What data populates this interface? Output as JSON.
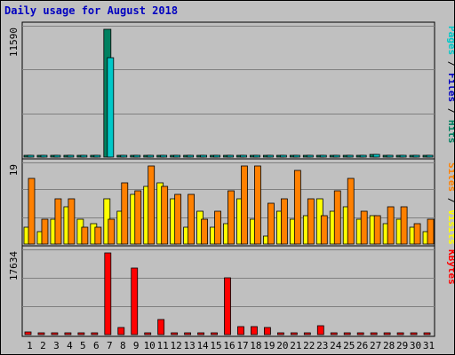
{
  "chart_data": {
    "type": "bar",
    "title": "Daily usage for August 2018",
    "days": [
      "1",
      "2",
      "3",
      "4",
      "5",
      "6",
      "7",
      "8",
      "9",
      "10",
      "11",
      "12",
      "13",
      "14",
      "15",
      "16",
      "17",
      "18",
      "19",
      "20",
      "21",
      "22",
      "23",
      "24",
      "25",
      "26",
      "27",
      "28",
      "29",
      "30",
      "31"
    ],
    "weekend_days": [
      "4",
      "5",
      "11",
      "12",
      "18",
      "19",
      "25",
      "26"
    ],
    "panels": [
      {
        "id": "hits-files-pages",
        "max_label": "11590",
        "ymax": 11590,
        "right_label": [
          {
            "text": "Pages",
            "color": "#00c8c8"
          },
          {
            "text": " / ",
            "color": "#000000"
          },
          {
            "text": "Files",
            "color": "#0000c0"
          },
          {
            "text": " / ",
            "color": "#000000"
          },
          {
            "text": "Hits",
            "color": "#008060"
          }
        ],
        "series": [
          {
            "name": "Hits",
            "color": "#008060",
            "values": [
              40,
              40,
              40,
              40,
              40,
              40,
              11590,
              40,
              40,
              40,
              40,
              40,
              40,
              40,
              40,
              40,
              40,
              40,
              40,
              40,
              40,
              40,
              40,
              40,
              40,
              40,
              260,
              40,
              40,
              40,
              40
            ]
          },
          {
            "name": "Files",
            "color": "#0000c0",
            "values": [
              30,
              30,
              30,
              30,
              30,
              30,
              9050,
              30,
              30,
              30,
              30,
              30,
              30,
              30,
              30,
              30,
              30,
              30,
              30,
              30,
              30,
              30,
              30,
              30,
              30,
              30,
              250,
              30,
              30,
              30,
              30
            ]
          },
          {
            "name": "Pages",
            "color": "#00c8c8",
            "values": [
              20,
              20,
              20,
              20,
              20,
              20,
              9050,
              20,
              20,
              20,
              20,
              20,
              20,
              20,
              20,
              20,
              20,
              20,
              20,
              20,
              20,
              20,
              20,
              20,
              20,
              20,
              250,
              20,
              20,
              20,
              20
            ]
          }
        ]
      },
      {
        "id": "visits-sites",
        "max_label": "19",
        "ymax": 19,
        "right_label": [
          {
            "text": "Sites",
            "color": "#ff8000"
          },
          {
            "text": " / ",
            "color": "#000000"
          },
          {
            "text": "Visits",
            "color": "#ffff00"
          }
        ],
        "series": [
          {
            "name": "Visits",
            "color": "#ffff00",
            "values": [
              4,
              3,
              6,
              9,
              6,
              5,
              11,
              8,
              12,
              14,
              15,
              11,
              4,
              8,
              4,
              5,
              11,
              6,
              2,
              8,
              6,
              7,
              11,
              8,
              9,
              6,
              7,
              5,
              6,
              4,
              3
            ]
          },
          {
            "name": "Sites",
            "color": "#ff8000",
            "values": [
              16,
              6,
              11,
              11,
              4,
              4,
              6,
              15,
              13,
              19,
              14,
              12,
              12,
              6,
              8,
              13,
              19,
              19,
              10,
              11,
              18,
              11,
              7,
              13,
              16,
              8,
              7,
              9,
              9,
              5,
              6
            ]
          }
        ]
      },
      {
        "id": "kbytes",
        "max_label": "17634",
        "ymax": 17634,
        "right_label": [
          {
            "text": "KBytes",
            "color": "#ff0000"
          }
        ],
        "series": [
          {
            "name": "KBytes",
            "color": "#ff0000",
            "values": [
              650,
              120,
              120,
              120,
              120,
              120,
              17634,
              1500,
              14400,
              120,
              3300,
              120,
              300,
              120,
              120,
              12200,
              1800,
              1700,
              1600,
              120,
              300,
              120,
              2000,
              400,
              120,
              120,
              300,
              120,
              300,
              120,
              120
            ]
          }
        ]
      }
    ]
  }
}
